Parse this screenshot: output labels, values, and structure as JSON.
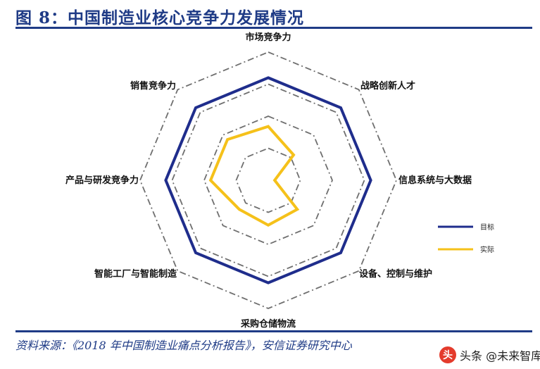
{
  "header": {
    "title": "图 8：中国制造业核心竞争力发展情况"
  },
  "footer": {
    "source": "资料来源：《2018 年中国制造业痛点分析报告》，安信证券研究中心",
    "watermark": "头条 @未来智库",
    "watermark_logo": "头"
  },
  "colors": {
    "target": "#1f2d8c",
    "actual": "#f5c11a",
    "grid": "#6f6f6f",
    "brand": "#1f3b86"
  },
  "chart_data": {
    "type": "radar",
    "title": "",
    "axes": [
      "市场竞争力",
      "战略创新人才",
      "信息系统与大数据",
      "设备、控制与维护",
      "采购仓储物流",
      "智能工厂与智能制造",
      "产品与研发竞争力",
      "销售竞争力"
    ],
    "grid_levels": [
      0.25,
      0.5,
      0.75,
      1.0
    ],
    "series": [
      {
        "name": "目标",
        "values": [
          0.8,
          0.8,
          0.8,
          0.8,
          0.8,
          0.8,
          0.8,
          0.8
        ]
      },
      {
        "name": "实际",
        "values": [
          0.42,
          0.28,
          0.05,
          0.32,
          0.35,
          0.32,
          0.45,
          0.45
        ]
      }
    ],
    "legend": {
      "position": "right"
    }
  }
}
